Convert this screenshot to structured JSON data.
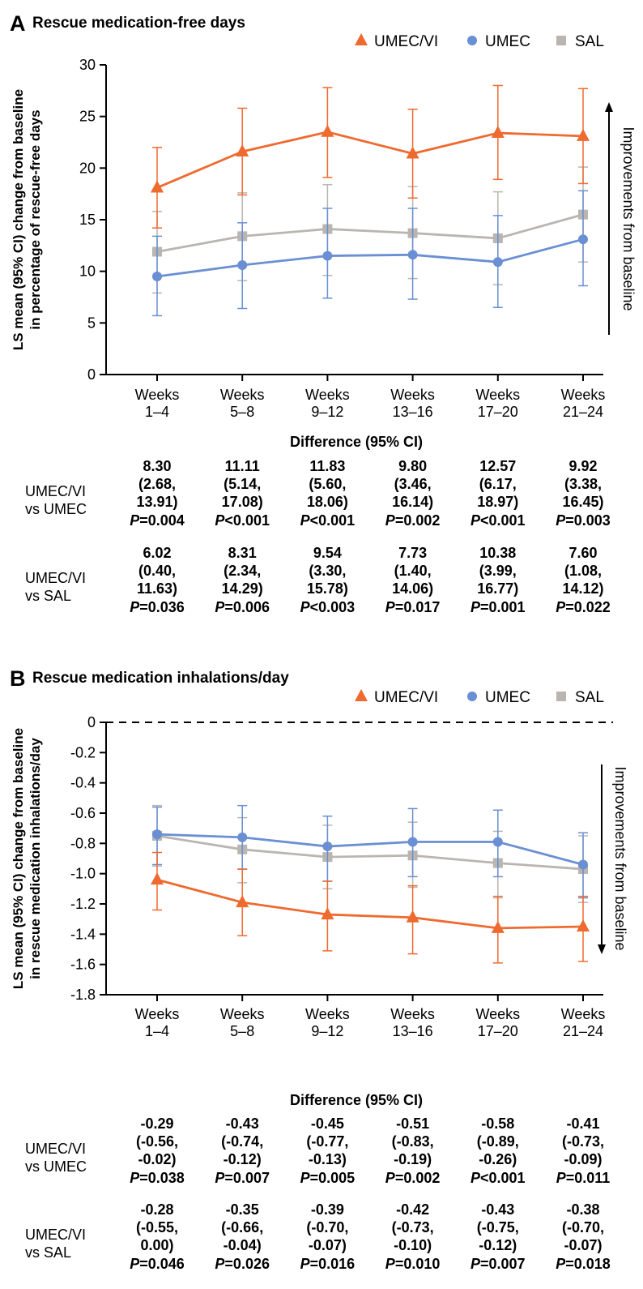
{
  "colors": {
    "umec_vi": "#ef6a2f",
    "umec": "#6a8fd3",
    "sal": "#b9b5b1"
  },
  "legend": [
    {
      "key": "umec_vi",
      "label": "UMEC/VI",
      "marker": "triangle"
    },
    {
      "key": "umec",
      "label": "UMEC",
      "marker": "circle"
    },
    {
      "key": "sal",
      "label": "SAL",
      "marker": "square"
    }
  ],
  "chart_data": [
    {
      "type": "line",
      "panel": "A",
      "title": "Rescue medication-free days",
      "ylabel_lines": [
        "LS mean (95% CI) change from baseline",
        "in percentage of rescue-free days"
      ],
      "xlabel": "",
      "ylim": [
        0,
        30
      ],
      "yticks": [
        0,
        5,
        10,
        15,
        20,
        25,
        30
      ],
      "categories": [
        [
          "Weeks",
          "1–4"
        ],
        [
          "Weeks",
          "5–8"
        ],
        [
          "Weeks",
          "9–12"
        ],
        [
          "Weeks",
          "13–16"
        ],
        [
          "Weeks",
          "17–20"
        ],
        [
          "Weeks",
          "21–24"
        ]
      ],
      "direction_note": "Improvements from baseline",
      "arrow_direction": "up",
      "series": [
        {
          "name": "UMEC/VI",
          "key": "umec_vi",
          "values": [
            18.1,
            21.6,
            23.5,
            21.4,
            23.4,
            23.1
          ],
          "lower": [
            14.2,
            17.4,
            19.1,
            17.1,
            18.9,
            18.5
          ],
          "upper": [
            22.0,
            25.8,
            27.8,
            25.7,
            28.0,
            27.7
          ]
        },
        {
          "name": "UMEC",
          "key": "umec",
          "values": [
            9.5,
            10.6,
            11.5,
            11.6,
            10.9,
            13.1
          ],
          "lower": [
            5.7,
            6.4,
            7.4,
            7.3,
            6.5,
            8.6
          ],
          "upper": [
            13.4,
            14.7,
            16.1,
            16.1,
            15.4,
            17.8
          ]
        },
        {
          "name": "SAL",
          "key": "sal",
          "values": [
            11.9,
            13.4,
            14.1,
            13.7,
            13.2,
            15.5
          ],
          "lower": [
            7.9,
            9.1,
            9.6,
            9.3,
            8.7,
            10.9
          ],
          "upper": [
            15.8,
            17.6,
            18.4,
            18.2,
            17.7,
            20.1
          ]
        }
      ],
      "difference_header": "Difference (95% CI)",
      "comparisons": [
        {
          "label_lines": [
            "UMEC/VI",
            "vs UMEC"
          ],
          "cells": [
            {
              "est": "8.30",
              "ci1": "(2.68,",
              "ci2": "13.91)",
              "p": "=0.004"
            },
            {
              "est": "11.11",
              "ci1": "(5.14,",
              "ci2": "17.08)",
              "p": "<0.001"
            },
            {
              "est": "11.83",
              "ci1": "(5.60,",
              "ci2": "18.06)",
              "p": "<0.001"
            },
            {
              "est": "9.80",
              "ci1": "(3.46,",
              "ci2": "16.14)",
              "p": "=0.002"
            },
            {
              "est": "12.57",
              "ci1": "(6.17,",
              "ci2": "18.97)",
              "p": "<0.001"
            },
            {
              "est": "9.92",
              "ci1": "(3.38,",
              "ci2": "16.45)",
              "p": "=0.003"
            }
          ]
        },
        {
          "label_lines": [
            "UMEC/VI",
            "vs SAL"
          ],
          "cells": [
            {
              "est": "6.02",
              "ci1": "(0.40,",
              "ci2": "11.63)",
              "p": "=0.036"
            },
            {
              "est": "8.31",
              "ci1": "(2.34,",
              "ci2": "14.29)",
              "p": "=0.006"
            },
            {
              "est": "9.54",
              "ci1": "(3.30,",
              "ci2": "15.78)",
              "p": "<0.003"
            },
            {
              "est": "7.73",
              "ci1": "(1.40,",
              "ci2": "14.06)",
              "p": "=0.017"
            },
            {
              "est": "10.38",
              "ci1": "(3.99,",
              "ci2": "16.77)",
              "p": "=0.001"
            },
            {
              "est": "7.60",
              "ci1": "(1.08,",
              "ci2": "14.12)",
              "p": "=0.022"
            }
          ]
        }
      ]
    },
    {
      "type": "line",
      "panel": "B",
      "title": "Rescue medication inhalations/day",
      "ylabel_lines": [
        "LS mean (95% CI) change from baseline",
        "in rescue medication inhalations/day"
      ],
      "xlabel": "",
      "ylim": [
        -1.8,
        0
      ],
      "yticks": [
        "0",
        "-0.2",
        "-0.4",
        "-0.6",
        "-0.8",
        "-1.0",
        "-1.2",
        "-1.4",
        "-1.6",
        "-1.8"
      ],
      "reference_line": 0,
      "categories": [
        [
          "Weeks",
          "1–4"
        ],
        [
          "Weeks",
          "5–8"
        ],
        [
          "Weeks",
          "9–12"
        ],
        [
          "Weeks",
          "13–16"
        ],
        [
          "Weeks",
          "17–20"
        ],
        [
          "Weeks",
          "21–24"
        ]
      ],
      "direction_note": "Improvements from baseline",
      "arrow_direction": "down",
      "series": [
        {
          "name": "UMEC/VI",
          "key": "umec_vi",
          "values": [
            -1.04,
            -1.19,
            -1.27,
            -1.29,
            -1.36,
            -1.35
          ],
          "lower": [
            -1.24,
            -1.41,
            -1.51,
            -1.53,
            -1.59,
            -1.58
          ],
          "upper": [
            -0.86,
            -0.97,
            -1.05,
            -1.08,
            -1.15,
            -1.15
          ]
        },
        {
          "name": "UMEC",
          "key": "umec",
          "values": [
            -0.74,
            -0.76,
            -0.82,
            -0.79,
            -0.79,
            -0.94
          ],
          "lower": [
            -0.94,
            -0.97,
            -1.05,
            -1.02,
            -1.02,
            -1.16
          ],
          "upper": [
            -0.56,
            -0.55,
            -0.62,
            -0.57,
            -0.58,
            -0.73
          ]
        },
        {
          "name": "SAL",
          "key": "sal",
          "values": [
            -0.75,
            -0.84,
            -0.89,
            -0.88,
            -0.93,
            -0.97
          ],
          "lower": [
            -0.95,
            -1.06,
            -1.1,
            -1.09,
            -1.16,
            -1.19
          ],
          "upper": [
            -0.55,
            -0.63,
            -0.68,
            -0.66,
            -0.72,
            -0.75
          ]
        }
      ],
      "difference_header": "Difference (95% CI)",
      "comparisons": [
        {
          "label_lines": [
            "UMEC/VI",
            "vs UMEC"
          ],
          "cells": [
            {
              "est": "-0.29",
              "ci1": "(-0.56,",
              "ci2": "-0.02)",
              "p": "=0.038"
            },
            {
              "est": "-0.43",
              "ci1": "(-0.74,",
              "ci2": "-0.12)",
              "p": "=0.007"
            },
            {
              "est": "-0.45",
              "ci1": "(-0.77,",
              "ci2": "-0.13)",
              "p": "=0.005"
            },
            {
              "est": "-0.51",
              "ci1": "(-0.83,",
              "ci2": "-0.19)",
              "p": "=0.002"
            },
            {
              "est": "-0.58",
              "ci1": "(-0.89,",
              "ci2": "-0.26)",
              "p": "<0.001"
            },
            {
              "est": "-0.41",
              "ci1": "(-0.73,",
              "ci2": "-0.09)",
              "p": "=0.011"
            }
          ]
        },
        {
          "label_lines": [
            "UMEC/VI",
            "vs SAL"
          ],
          "cells": [
            {
              "est": "-0.28",
              "ci1": "(-0.55,",
              "ci2": "0.00)",
              "p": "=0.046"
            },
            {
              "est": "-0.35",
              "ci1": "(-0.66,",
              "ci2": "-0.04)",
              "p": "=0.026"
            },
            {
              "est": "-0.39",
              "ci1": "(-0.70,",
              "ci2": "-0.07)",
              "p": "=0.016"
            },
            {
              "est": "-0.42",
              "ci1": "(-0.73,",
              "ci2": "-0.10)",
              "p": "=0.010"
            },
            {
              "est": "-0.43",
              "ci1": "(-0.75,",
              "ci2": "-0.12)",
              "p": "=0.007"
            },
            {
              "est": "-0.38",
              "ci1": "(-0.70,",
              "ci2": "-0.07)",
              "p": "=0.018"
            }
          ]
        }
      ]
    }
  ]
}
